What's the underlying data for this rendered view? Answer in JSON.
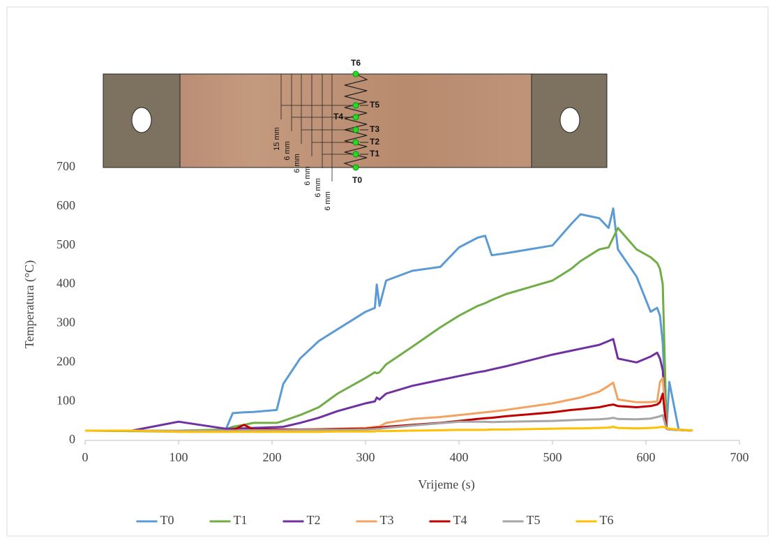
{
  "chart_data": {
    "type": "line",
    "x_label": "Vrijeme (s)",
    "y_label": "Temperatura (°C)",
    "x": [
      0,
      50,
      100,
      150,
      158,
      170,
      180,
      205,
      212,
      230,
      250,
      270,
      300,
      310,
      312,
      315,
      322,
      350,
      380,
      400,
      420,
      428,
      435,
      450,
      500,
      520,
      530,
      550,
      560,
      565,
      570,
      590,
      605,
      612,
      615,
      618,
      622,
      625,
      635,
      650
    ],
    "series": [
      {
        "name": "T0",
        "color": "#5b9bd5",
        "values": [
          25,
          24,
          22,
          25,
          70,
          72,
          73,
          78,
          145,
          210,
          255,
          285,
          330,
          340,
          400,
          345,
          410,
          435,
          445,
          495,
          520,
          525,
          475,
          480,
          500,
          555,
          580,
          570,
          545,
          595,
          490,
          420,
          330,
          340,
          320,
          250,
          30,
          150,
          28,
          25
        ]
      },
      {
        "name": "T1",
        "color": "#70ad47",
        "values": [
          25,
          24,
          25,
          28,
          35,
          40,
          45,
          45,
          50,
          65,
          85,
          120,
          160,
          175,
          172,
          175,
          195,
          240,
          290,
          320,
          345,
          352,
          360,
          375,
          410,
          440,
          460,
          490,
          495,
          520,
          545,
          490,
          470,
          455,
          440,
          400,
          30,
          28,
          27,
          25
        ]
      },
      {
        "name": "T2",
        "color": "#7030a0",
        "values": [
          25,
          25,
          48,
          30,
          30,
          31,
          32,
          34,
          35,
          45,
          58,
          75,
          95,
          100,
          110,
          105,
          120,
          140,
          155,
          165,
          175,
          178,
          182,
          190,
          220,
          230,
          235,
          245,
          255,
          260,
          210,
          200,
          215,
          225,
          210,
          180,
          30,
          28,
          27,
          25
        ]
      },
      {
        "name": "T3",
        "color": "#f4a261",
        "values": [
          25,
          25,
          25,
          25,
          25,
          26,
          26,
          27,
          27,
          28,
          29,
          30,
          32,
          35,
          35,
          36,
          45,
          55,
          60,
          65,
          70,
          72,
          74,
          78,
          95,
          105,
          110,
          125,
          140,
          148,
          105,
          98,
          98,
          100,
          150,
          160,
          30,
          28,
          27,
          25
        ]
      },
      {
        "name": "T4",
        "color": "#c00000",
        "values": [
          25,
          25,
          25,
          25,
          26,
          40,
          28,
          28,
          28,
          28,
          28,
          29,
          30,
          32,
          33,
          33,
          35,
          40,
          45,
          50,
          55,
          57,
          58,
          62,
          72,
          78,
          80,
          85,
          90,
          92,
          88,
          85,
          88,
          92,
          98,
          120,
          30,
          28,
          27,
          25
        ]
      },
      {
        "name": "T5",
        "color": "#a5a5a5",
        "values": [
          25,
          25,
          25,
          25,
          25,
          26,
          26,
          26,
          26,
          27,
          27,
          27,
          28,
          29,
          30,
          30,
          32,
          38,
          44,
          48,
          48,
          48,
          47,
          48,
          50,
          52,
          53,
          54,
          56,
          58,
          55,
          54,
          56,
          60,
          62,
          65,
          30,
          28,
          27,
          25
        ]
      },
      {
        "name": "T6",
        "color": "#ffc000",
        "values": [
          25,
          25,
          22,
          22,
          22,
          22,
          22,
          22,
          22,
          22,
          22,
          23,
          23,
          23,
          24,
          24,
          24,
          25,
          26,
          27,
          27,
          27,
          28,
          28,
          30,
          31,
          31,
          32,
          33,
          35,
          32,
          31,
          32,
          33,
          34,
          35,
          32,
          30,
          28,
          25
        ]
      }
    ],
    "xlim": [
      0,
      700
    ],
    "xticks": [
      0,
      100,
      200,
      300,
      400,
      500,
      600,
      700
    ],
    "ylim": [
      0,
      700
    ],
    "yticks": [
      0,
      100,
      200,
      300,
      400,
      500,
      600,
      700
    ],
    "grid": false,
    "legend": "bottom"
  },
  "inset": {
    "points": [
      "T6",
      "T5",
      "T4",
      "T3",
      "T2",
      "T1",
      "T0"
    ],
    "dimensions": [
      "15 mm",
      "6 mm",
      "6 mm",
      "6 mm",
      "6 mm",
      "6 mm"
    ]
  }
}
